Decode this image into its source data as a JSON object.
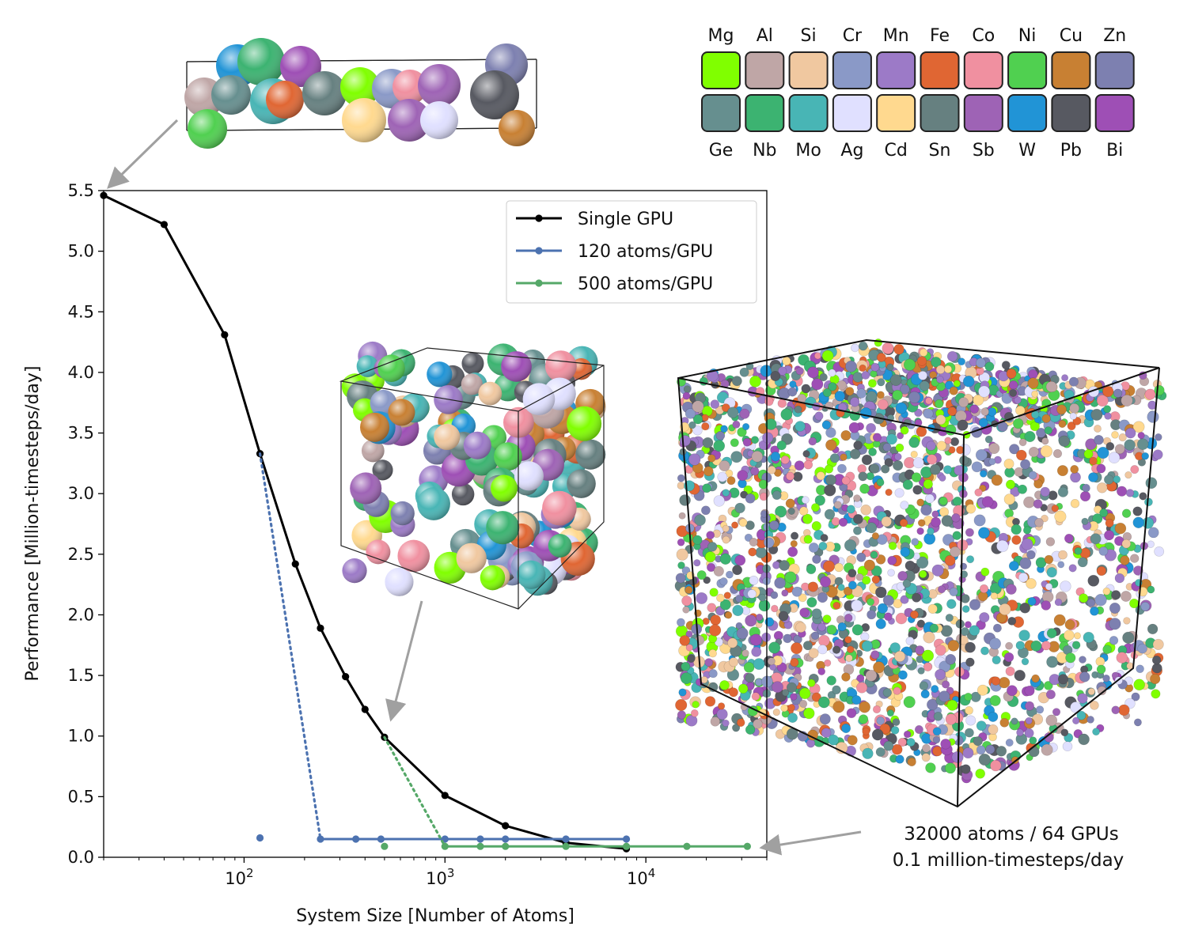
{
  "chart_data": {
    "type": "line",
    "xscale": "log",
    "xlim": [
      20,
      40000
    ],
    "ylim": [
      0,
      5.5
    ],
    "xlabel": "System Size [Number of Atoms]",
    "ylabel": "Performance [Million-timesteps/day]",
    "xticks": [
      {
        "value": 100,
        "base": "10",
        "exp": "2"
      },
      {
        "value": 1000,
        "base": "10",
        "exp": "3"
      },
      {
        "value": 10000,
        "base": "10",
        "exp": "4"
      }
    ],
    "yticks": [
      "0.0",
      "0.5",
      "1.0",
      "1.5",
      "2.0",
      "2.5",
      "3.0",
      "3.5",
      "4.0",
      "4.5",
      "5.0",
      "5.5"
    ],
    "legend_position": "top-right",
    "series": [
      {
        "name": "Single GPU",
        "color": "#000000",
        "x": [
          20,
          40,
          80,
          120,
          180,
          240,
          320,
          400,
          500,
          1000,
          2000,
          4000,
          8000
        ],
        "y": [
          5.46,
          5.22,
          4.31,
          3.33,
          2.42,
          1.89,
          1.49,
          1.22,
          0.99,
          0.51,
          0.26,
          0.12,
          0.07
        ]
      },
      {
        "name": "120 atoms/GPU",
        "color": "#4c72b0",
        "x": [
          120,
          240,
          360,
          480,
          1000,
          1500,
          2000,
          4000,
          8000
        ],
        "y": [
          0.16,
          0.15,
          0.15,
          0.15,
          0.15,
          0.15,
          0.15,
          0.15,
          0.15
        ],
        "connector": {
          "x": [
            120,
            240
          ],
          "y": [
            3.33,
            0.15
          ],
          "style": "dotted"
        },
        "isolated_first_point": true
      },
      {
        "name": "500 atoms/GPU",
        "color": "#55a868",
        "x": [
          500,
          1000,
          1500,
          2000,
          4000,
          8000,
          16000,
          32000
        ],
        "y": [
          0.09,
          0.09,
          0.09,
          0.09,
          0.09,
          0.09,
          0.09,
          0.09
        ],
        "connector": {
          "x": [
            500,
            1000
          ],
          "y": [
            0.99,
            0.09
          ],
          "style": "dotted"
        },
        "isolated_first_point": true
      }
    ],
    "annotations": [
      "32000 atoms / 64 GPUs",
      "0.1 million-timesteps/day"
    ]
  },
  "element_legend": [
    {
      "symbol": "Mg",
      "color": "#80ff00"
    },
    {
      "symbol": "Al",
      "color": "#bfa6a6"
    },
    {
      "symbol": "Si",
      "color": "#f0c8a0"
    },
    {
      "symbol": "Cr",
      "color": "#8a99c7"
    },
    {
      "symbol": "Mn",
      "color": "#9c7ac7"
    },
    {
      "symbol": "Fe",
      "color": "#e06633"
    },
    {
      "symbol": "Co",
      "color": "#f090a0"
    },
    {
      "symbol": "Ni",
      "color": "#50d050"
    },
    {
      "symbol": "Cu",
      "color": "#c88033"
    },
    {
      "symbol": "Zn",
      "color": "#7d80b0"
    },
    {
      "symbol": "Ge",
      "color": "#668f8f"
    },
    {
      "symbol": "Nb",
      "color": "#3cb371"
    },
    {
      "symbol": "Mo",
      "color": "#48b5b5"
    },
    {
      "symbol": "Ag",
      "color": "#e0e0ff"
    },
    {
      "symbol": "Cd",
      "color": "#ffd98f"
    },
    {
      "symbol": "Sn",
      "color": "#668080"
    },
    {
      "symbol": "Sb",
      "color": "#9e63b5"
    },
    {
      "symbol": "W",
      "color": "#2194d6"
    },
    {
      "symbol": "Pb",
      "color": "#575961"
    },
    {
      "symbol": "Bi",
      "color": "#9e4fb5"
    }
  ]
}
